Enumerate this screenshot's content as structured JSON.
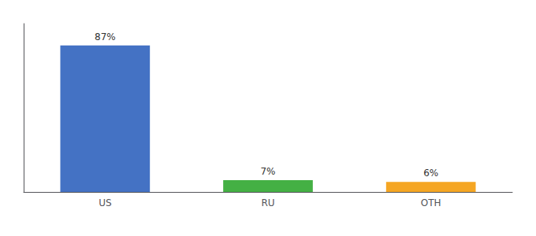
{
  "chart_data": {
    "type": "bar",
    "categories": [
      "US",
      "RU",
      "OTH"
    ],
    "values": [
      87,
      7,
      6
    ],
    "value_labels": [
      "87%",
      "7%",
      "6%"
    ],
    "colors": [
      "#4472c4",
      "#44b044",
      "#f5a623"
    ],
    "ylim": [
      0,
      100
    ],
    "grid": false,
    "data_labels": true,
    "tick_labels": "x"
  }
}
